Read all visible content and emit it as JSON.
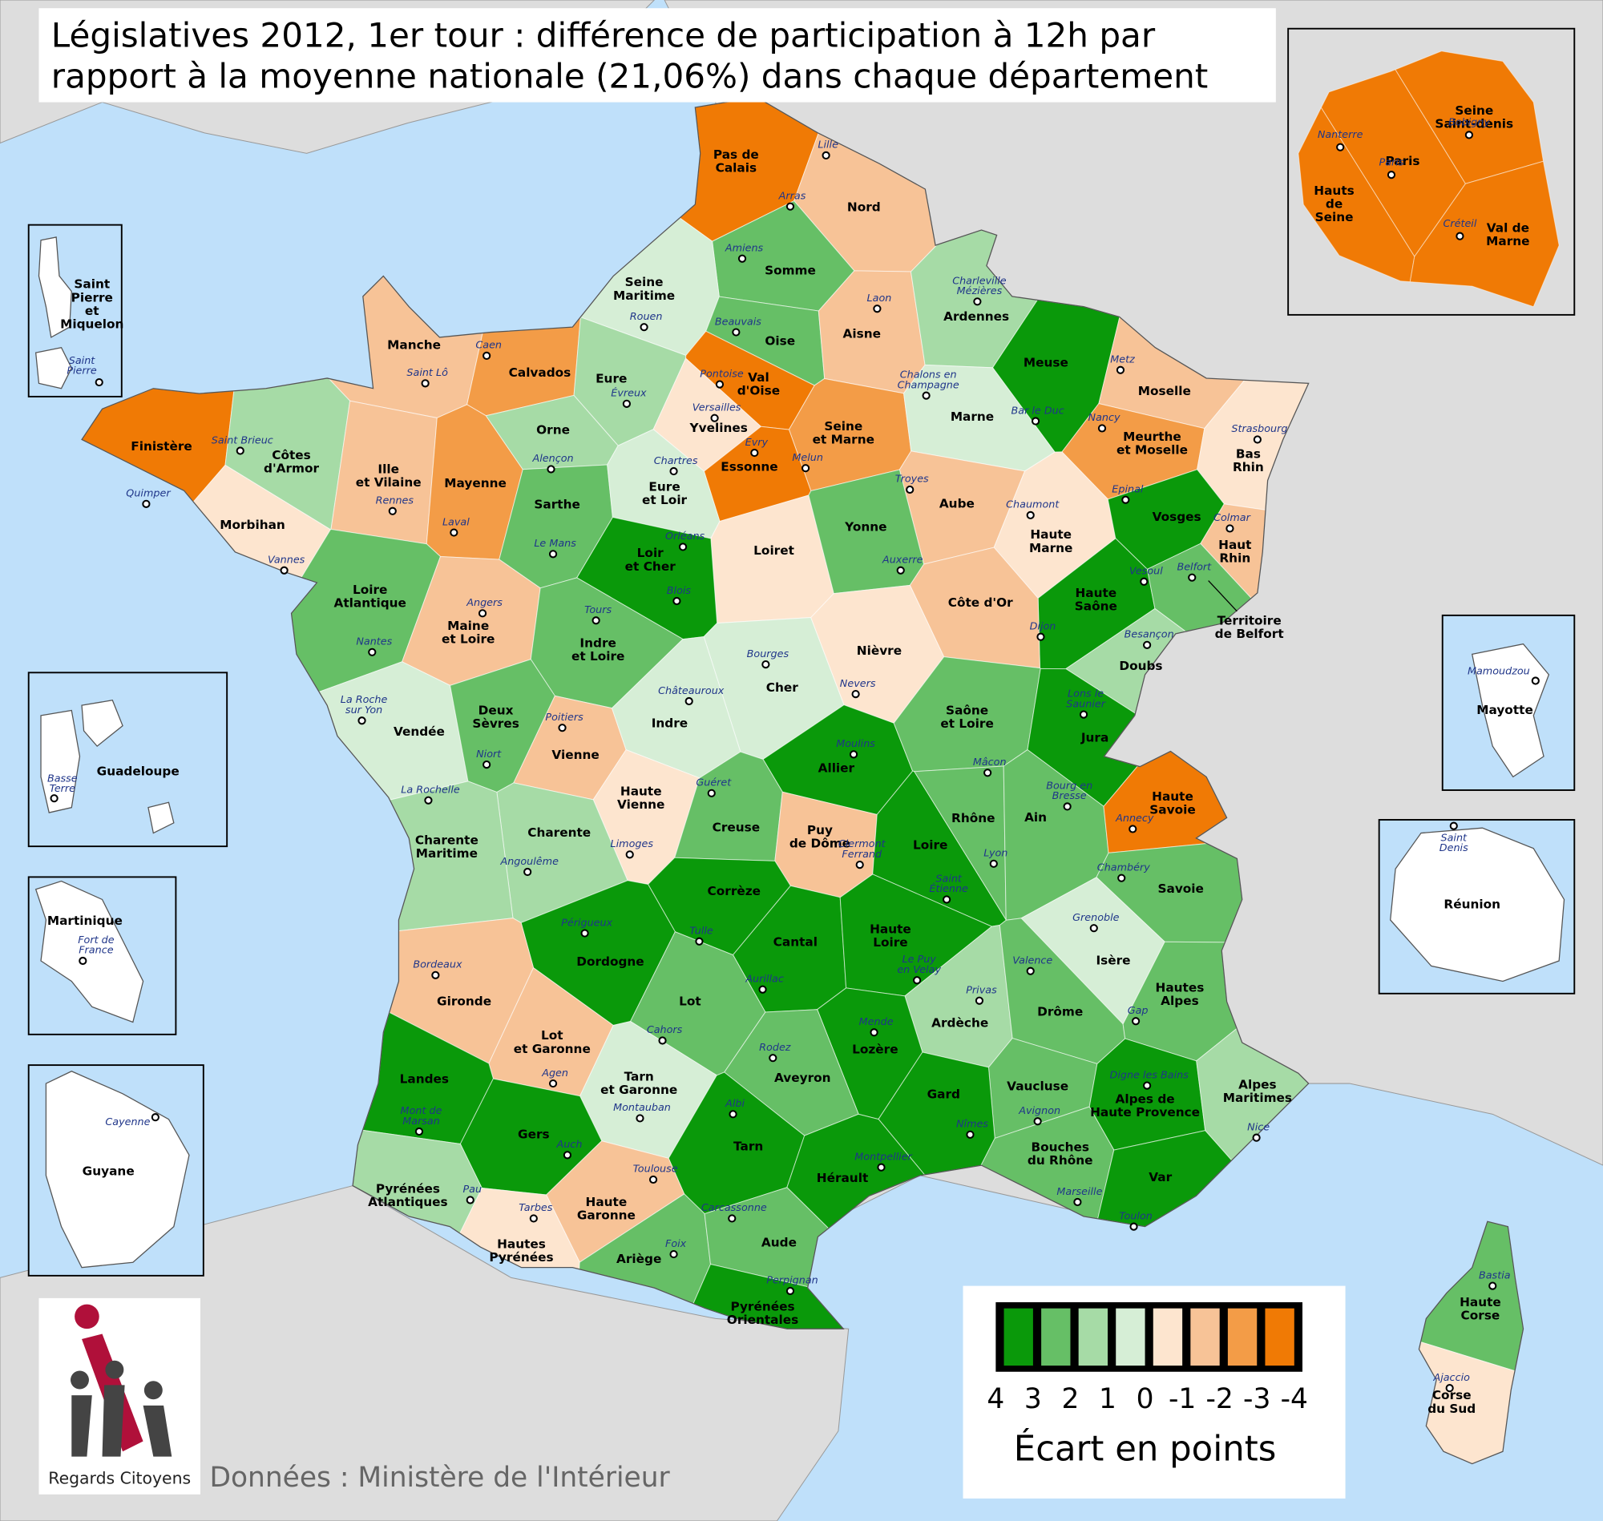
{
  "title_lines": [
    "Législatives 2012, 1er tour : différence de participation à 12h par",
    "rapport à la moyenne nationale (21,06%) dans chaque département"
  ],
  "departments": [
    {
      "name_lines": [
        "Pas de",
        "Calais"
      ],
      "city_lines": [
        "Arras"
      ],
      "value": -3.5
    },
    {
      "name_lines": [
        "Nord"
      ],
      "city_lines": [
        "Lille"
      ],
      "value": -1.5
    },
    {
      "name_lines": [
        "Somme"
      ],
      "city_lines": [
        "Amiens"
      ],
      "value": 2.5
    },
    {
      "name_lines": [
        "Seine",
        "Maritime"
      ],
      "city_lines": [
        "Rouen"
      ],
      "value": 0.5
    },
    {
      "name_lines": [
        "Oise"
      ],
      "city_lines": [
        "Beauvais"
      ],
      "value": 2.5
    },
    {
      "name_lines": [
        "Aisne"
      ],
      "city_lines": [
        "Laon"
      ],
      "value": -1.5
    },
    {
      "name_lines": [
        "Ardennes"
      ],
      "city_lines": [
        "Charleville",
        "Mézières"
      ],
      "value": 1.5
    },
    {
      "name_lines": [
        "Manche"
      ],
      "city_lines": [
        "Saint Lô"
      ],
      "value": -1.5
    },
    {
      "name_lines": [
        "Calvados"
      ],
      "city_lines": [
        "Caen"
      ],
      "value": -2.5
    },
    {
      "name_lines": [
        "Eure"
      ],
      "city_lines": [
        "Évreux"
      ],
      "value": 1.5
    },
    {
      "name_lines": [
        "Val",
        "d'Oise"
      ],
      "city_lines": [
        "Pontoise"
      ],
      "value": -3.5
    },
    {
      "name_lines": [
        "Yvelines"
      ],
      "city_lines": [
        "Versailles"
      ],
      "value": -0.5
    },
    {
      "name_lines": [
        "Seine",
        "et Marne"
      ],
      "city_lines": [
        "Melun"
      ],
      "value": -2.5
    },
    {
      "name_lines": [
        "Essonne"
      ],
      "city_lines": [
        "Evry"
      ],
      "value": -3.5
    },
    {
      "name_lines": [
        "Meuse"
      ],
      "city_lines": [
        "Bar le Duc"
      ],
      "value": 3.5
    },
    {
      "name_lines": [
        "Marne"
      ],
      "city_lines": [
        "Chalons en",
        "Champagne"
      ],
      "value": 0.5
    },
    {
      "name_lines": [
        "Moselle"
      ],
      "city_lines": [
        "Metz"
      ],
      "value": -1.5
    },
    {
      "name_lines": [
        "Meurthe",
        "et Moselle"
      ],
      "city_lines": [
        "Nancy"
      ],
      "value": -2.5
    },
    {
      "name_lines": [
        "Bas",
        "Rhin"
      ],
      "city_lines": [
        "Strasbourg"
      ],
      "value": -0.5
    },
    {
      "name_lines": [
        "Finistère"
      ],
      "city_lines": [
        "Quimper"
      ],
      "value": -3.5
    },
    {
      "name_lines": [
        "Côtes",
        "d'Armor"
      ],
      "city_lines": [
        "Saint Brieuc"
      ],
      "value": 1.5
    },
    {
      "name_lines": [
        "Ille",
        "et Vilaine"
      ],
      "city_lines": [
        "Rennes"
      ],
      "value": -1.5
    },
    {
      "name_lines": [
        "Mayenne"
      ],
      "city_lines": [
        "Laval"
      ],
      "value": -2.5
    },
    {
      "name_lines": [
        "Orne"
      ],
      "city_lines": [
        "Alençon"
      ],
      "value": 1.5
    },
    {
      "name_lines": [
        "Sarthe"
      ],
      "city_lines": [
        "Le Mans"
      ],
      "value": 2.5
    },
    {
      "name_lines": [
        "Eure",
        "et Loir"
      ],
      "city_lines": [
        "Chartres"
      ],
      "value": 0.5
    },
    {
      "name_lines": [
        "Aube"
      ],
      "city_lines": [
        "Troyes"
      ],
      "value": -1.5
    },
    {
      "name_lines": [
        "Haute",
        "Marne"
      ],
      "city_lines": [
        "Chaumont"
      ],
      "value": -0.5
    },
    {
      "name_lines": [
        "Vosges"
      ],
      "city_lines": [
        "Epinal"
      ],
      "value": 3.5
    },
    {
      "name_lines": [
        "Haut",
        "Rhin"
      ],
      "city_lines": [
        "Colmar"
      ],
      "value": -1.5
    },
    {
      "name_lines": [
        "Morbihan"
      ],
      "city_lines": [
        "Vannes"
      ],
      "value": -0.5
    },
    {
      "name_lines": [
        "Loiret"
      ],
      "city_lines": [
        "Orléans"
      ],
      "value": -0.5
    },
    {
      "name_lines": [
        "Loir",
        "et Cher"
      ],
      "city_lines": [
        "Blois"
      ],
      "value": 3.5
    },
    {
      "name_lines": [
        "Yonne"
      ],
      "city_lines": [
        "Auxerre"
      ],
      "value": 2.5
    },
    {
      "name_lines": [
        "Haute",
        "Saône"
      ],
      "city_lines": [
        "Vesoul"
      ],
      "value": 3.5
    },
    {
      "name_lines": [
        "Territoire",
        "de Belfort"
      ],
      "city_lines": [
        "Belfort"
      ],
      "value": 2.5
    },
    {
      "name_lines": [
        "Loire",
        "Atlantique"
      ],
      "city_lines": [
        "Nantes"
      ],
      "value": 2.5
    },
    {
      "name_lines": [
        "Maine",
        "et Loire"
      ],
      "city_lines": [
        "Angers"
      ],
      "value": -1.5
    },
    {
      "name_lines": [
        "Indre",
        "et Loire"
      ],
      "city_lines": [
        "Tours"
      ],
      "value": 2.5
    },
    {
      "name_lines": [
        "Côte d'Or"
      ],
      "city_lines": [
        "Dijon"
      ],
      "value": -1.5
    },
    {
      "name_lines": [
        "Doubs"
      ],
      "city_lines": [
        "Besançon"
      ],
      "value": 1.5
    },
    {
      "name_lines": [
        "Cher"
      ],
      "city_lines": [
        "Bourges"
      ],
      "value": 0.5
    },
    {
      "name_lines": [
        "Nièvre"
      ],
      "city_lines": [
        "Nevers"
      ],
      "value": -0.5
    },
    {
      "name_lines": [
        "Vendée"
      ],
      "city_lines": [
        "La Roche",
        "sur Yon"
      ],
      "value": 0.5
    },
    {
      "name_lines": [
        "Deux",
        "Sèvres"
      ],
      "city_lines": [
        "Niort"
      ],
      "value": 2.5
    },
    {
      "name_lines": [
        "Vienne"
      ],
      "city_lines": [
        "Poitiers"
      ],
      "value": -1.5
    },
    {
      "name_lines": [
        "Indre"
      ],
      "city_lines": [
        "Châteauroux"
      ],
      "value": 0.5
    },
    {
      "name_lines": [
        "Allier"
      ],
      "city_lines": [
        "Moulins"
      ],
      "value": 3.5
    },
    {
      "name_lines": [
        "Saône",
        "et Loire"
      ],
      "city_lines": [
        "Mâcon"
      ],
      "value": 2.5
    },
    {
      "name_lines": [
        "Jura"
      ],
      "city_lines": [
        "Lons le",
        "Saunier"
      ],
      "value": 3.5
    },
    {
      "name_lines": [
        "Haute",
        "Vienne"
      ],
      "city_lines": [
        "Limoges"
      ],
      "value": -0.5
    },
    {
      "name_lines": [
        "Creuse"
      ],
      "city_lines": [
        "Guéret"
      ],
      "value": 2.5
    },
    {
      "name_lines": [
        "Charente"
      ],
      "city_lines": [
        "Angoulême"
      ],
      "value": 1.5
    },
    {
      "name_lines": [
        "Charente",
        "Maritime"
      ],
      "city_lines": [
        "La Rochelle"
      ],
      "value": 1.5
    },
    {
      "name_lines": [
        "Puy",
        "de Dôme"
      ],
      "city_lines": [
        "Clermont",
        "Ferrand"
      ],
      "value": -1.5
    },
    {
      "name_lines": [
        "Loire"
      ],
      "city_lines": [
        "Saint",
        "Étienne"
      ],
      "value": 3.5
    },
    {
      "name_lines": [
        "Rhône"
      ],
      "city_lines": [
        "Lyon"
      ],
      "value": 2.5
    },
    {
      "name_lines": [
        "Ain"
      ],
      "city_lines": [
        "Bourg en",
        "Bresse"
      ],
      "value": 2.5
    },
    {
      "name_lines": [
        "Haute",
        "Savoie"
      ],
      "city_lines": [
        "Annecy"
      ],
      "value": -3.5
    },
    {
      "name_lines": [
        "Savoie"
      ],
      "city_lines": [
        "Chambéry"
      ],
      "value": 2.5
    },
    {
      "name_lines": [
        "Corrèze"
      ],
      "city_lines": [
        "Tulle"
      ],
      "value": 3.5
    },
    {
      "name_lines": [
        "Dordogne"
      ],
      "city_lines": [
        "Périgueux"
      ],
      "value": 3.5
    },
    {
      "name_lines": [
        "Cantal"
      ],
      "city_lines": [
        "Aurillac"
      ],
      "value": 3.5
    },
    {
      "name_lines": [
        "Haute",
        "Loire"
      ],
      "city_lines": [
        "Le Puy",
        "en Velay"
      ],
      "value": 3.5
    },
    {
      "name_lines": [
        "Isère"
      ],
      "city_lines": [
        "Grenoble"
      ],
      "value": 0.5
    },
    {
      "name_lines": [
        "Gironde"
      ],
      "city_lines": [
        "Bordeaux"
      ],
      "value": -1.5
    },
    {
      "name_lines": [
        "Lot"
      ],
      "city_lines": [
        "Cahors"
      ],
      "value": 2.5
    },
    {
      "name_lines": [
        "Ardèche"
      ],
      "city_lines": [
        "Privas"
      ],
      "value": 1.5
    },
    {
      "name_lines": [
        "Drôme"
      ],
      "city_lines": [
        "Valence"
      ],
      "value": 2.5
    },
    {
      "name_lines": [
        "Hautes",
        "Alpes"
      ],
      "city_lines": [
        "Gap"
      ],
      "value": 2.5
    },
    {
      "name_lines": [
        "Lot",
        "et Garonne"
      ],
      "city_lines": [
        "Agen"
      ],
      "value": -1.5
    },
    {
      "name_lines": [
        "Lozère"
      ],
      "city_lines": [
        "Mende"
      ],
      "value": 3.5
    },
    {
      "name_lines": [
        "Aveyron"
      ],
      "city_lines": [
        "Rodez"
      ],
      "value": 2.5
    },
    {
      "name_lines": [
        "Landes"
      ],
      "city_lines": [
        "Mont de",
        "Marsan"
      ],
      "value": 3.5
    },
    {
      "name_lines": [
        "Tarn",
        "et Garonne"
      ],
      "city_lines": [
        "Montauban"
      ],
      "value": 0.5
    },
    {
      "name_lines": [
        "Vaucluse"
      ],
      "city_lines": [
        "Avignon"
      ],
      "value": 2.5
    },
    {
      "name_lines": [
        "Gard"
      ],
      "city_lines": [
        "Nîmes"
      ],
      "value": 3.5
    },
    {
      "name_lines": [
        "Alpes de",
        "Haute Provence"
      ],
      "city_lines": [
        "Digne les Bains"
      ],
      "value": 3.5
    },
    {
      "name_lines": [
        "Alpes",
        "Maritimes"
      ],
      "city_lines": [
        "Nice"
      ],
      "value": 1.5
    },
    {
      "name_lines": [
        "Gers"
      ],
      "city_lines": [
        "Auch"
      ],
      "value": 3.5
    },
    {
      "name_lines": [
        "Tarn"
      ],
      "city_lines": [
        "Albi"
      ],
      "value": 3.5
    },
    {
      "name_lines": [
        "Bouches",
        "du Rhône"
      ],
      "city_lines": [
        "Marseille"
      ],
      "value": 2.5
    },
    {
      "name_lines": [
        "Var"
      ],
      "city_lines": [
        "Toulon"
      ],
      "value": 3.5
    },
    {
      "name_lines": [
        "Hérault"
      ],
      "city_lines": [
        "Montpellier"
      ],
      "value": 3.5
    },
    {
      "name_lines": [
        "Pyrénées",
        "Atlantiques"
      ],
      "city_lines": [
        "Pau"
      ],
      "value": 1.5
    },
    {
      "name_lines": [
        "Haute",
        "Garonne"
      ],
      "city_lines": [
        "Toulouse"
      ],
      "value": -1.5
    },
    {
      "name_lines": [
        "Hautes",
        "Pyrénées"
      ],
      "city_lines": [
        "Tarbes"
      ],
      "value": -0.5
    },
    {
      "name_lines": [
        "Ariège"
      ],
      "city_lines": [
        "Foix"
      ],
      "value": 2.5
    },
    {
      "name_lines": [
        "Aude"
      ],
      "city_lines": [
        "Carcassonne"
      ],
      "value": 2.5
    },
    {
      "name_lines": [
        "Pyrénées",
        "Orientales"
      ],
      "city_lines": [
        "Perpignan"
      ],
      "value": 3.5
    },
    {
      "name_lines": [
        "Haute",
        "Corse"
      ],
      "city_lines": [
        "Bastia"
      ],
      "value": 2.5
    },
    {
      "name_lines": [
        "Corse",
        "du Sud"
      ],
      "city_lines": [
        "Ajaccio"
      ],
      "value": -0.5
    }
  ],
  "paris_inset": [
    {
      "name_lines": [
        "Paris"
      ],
      "city_lines": [
        "Paris"
      ],
      "value": -3.5
    },
    {
      "name_lines": [
        "Hauts",
        "de",
        "Seine"
      ],
      "city_lines": [
        "Nanterre"
      ],
      "value": -3.5
    },
    {
      "name_lines": [
        "Seine",
        "Saint-denis"
      ],
      "city_lines": [
        "Bobigny"
      ],
      "value": -3.5
    },
    {
      "name_lines": [
        "Val de",
        "Marne"
      ],
      "city_lines": [
        "Créteil"
      ],
      "value": -3.5
    }
  ],
  "overseas": [
    {
      "name_lines": [
        "Saint",
        "Pierre",
        "et",
        "Miquelon"
      ],
      "city_lines": [
        "Saint",
        "Pierre"
      ]
    },
    {
      "name_lines": [
        "Guadeloupe"
      ],
      "city_lines": [
        "Basse",
        "Terre"
      ]
    },
    {
      "name_lines": [
        "Martinique"
      ],
      "city_lines": [
        "Fort de",
        "France"
      ]
    },
    {
      "name_lines": [
        "Guyane"
      ],
      "city_lines": [
        "Cayenne"
      ]
    },
    {
      "name_lines": [
        "Mayotte"
      ],
      "city_lines": [
        "Mamoudzou"
      ]
    },
    {
      "name_lines": [
        "Réunion"
      ],
      "city_lines": [
        "Saint",
        "Denis"
      ]
    }
  ],
  "legend": {
    "title": "Écart en points",
    "bins": [
      4,
      3,
      2,
      1,
      0,
      -1,
      -2,
      -3,
      -4
    ],
    "colors": [
      "#0a990a",
      "#66bf66",
      "#a6dba6",
      "#d6eed6",
      "#fde5cf",
      "#f7c397",
      "#f39c47",
      "#f07a05"
    ]
  },
  "logo_text": "Regards Citoyens",
  "source": "Données : Ministère de l'Intérieur"
}
